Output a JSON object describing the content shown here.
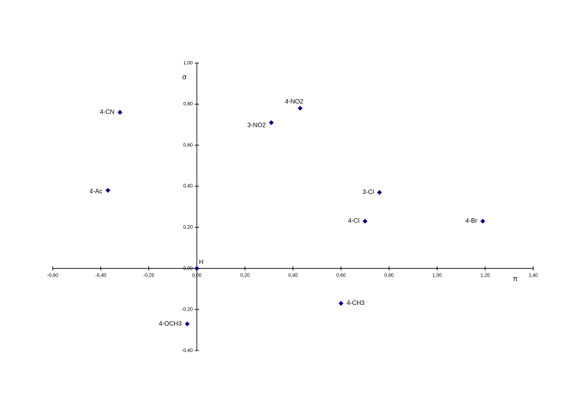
{
  "chart_data": {
    "type": "scatter",
    "x_label": "π",
    "y_label": "σ",
    "point_labels": [
      "4-CN",
      "4-Ac",
      "3-NO2",
      "4-NO2",
      "3-Cl",
      "4-Cl",
      "4-Br",
      "H",
      "4-CH3",
      "4-OCH3"
    ],
    "x": [
      -0.32,
      -0.37,
      0.31,
      0.43,
      0.76,
      0.7,
      1.19,
      0,
      0.6,
      -0.04
    ],
    "values": [
      0.76,
      0.38,
      0.71,
      0.78,
      0.37,
      0.23,
      0.23,
      0,
      -0.17,
      -0.27
    ],
    "color": "#000080",
    "marker": "diamond",
    "xlim": [
      -0.6,
      1.4
    ],
    "xticks": [
      {
        "value": -0.6,
        "label": "-0,60"
      },
      {
        "value": -0.4,
        "label": "-0,40"
      },
      {
        "value": -0.2,
        "label": "-0,20"
      },
      {
        "value": 0,
        "label": "0,00"
      },
      {
        "value": 0.2,
        "label": "0,20"
      },
      {
        "value": 0.4,
        "label": "0,40"
      },
      {
        "value": 0.6,
        "label": "0,60"
      },
      {
        "value": 0.8,
        "label": "0,80"
      },
      {
        "value": 1.0,
        "label": "1,00"
      },
      {
        "value": 1.2,
        "label": "1,20"
      },
      {
        "value": 1.4,
        "label": "1,40"
      }
    ],
    "ylim": [
      -0.4,
      1.0
    ],
    "yticks": [
      {
        "value": -0.4,
        "label": "-0,40"
      },
      {
        "value": -0.2,
        "label": "-0,20"
      },
      {
        "value": 0,
        "label": "0,00"
      },
      {
        "value": 0.2,
        "label": "0,20"
      },
      {
        "value": 0.4,
        "label": "0,40"
      },
      {
        "value": 0.6,
        "label": "0,60"
      },
      {
        "value": 0.8,
        "label": "0,80"
      },
      {
        "value": 1.0,
        "label": "1,00"
      }
    ],
    "grid": false
  }
}
